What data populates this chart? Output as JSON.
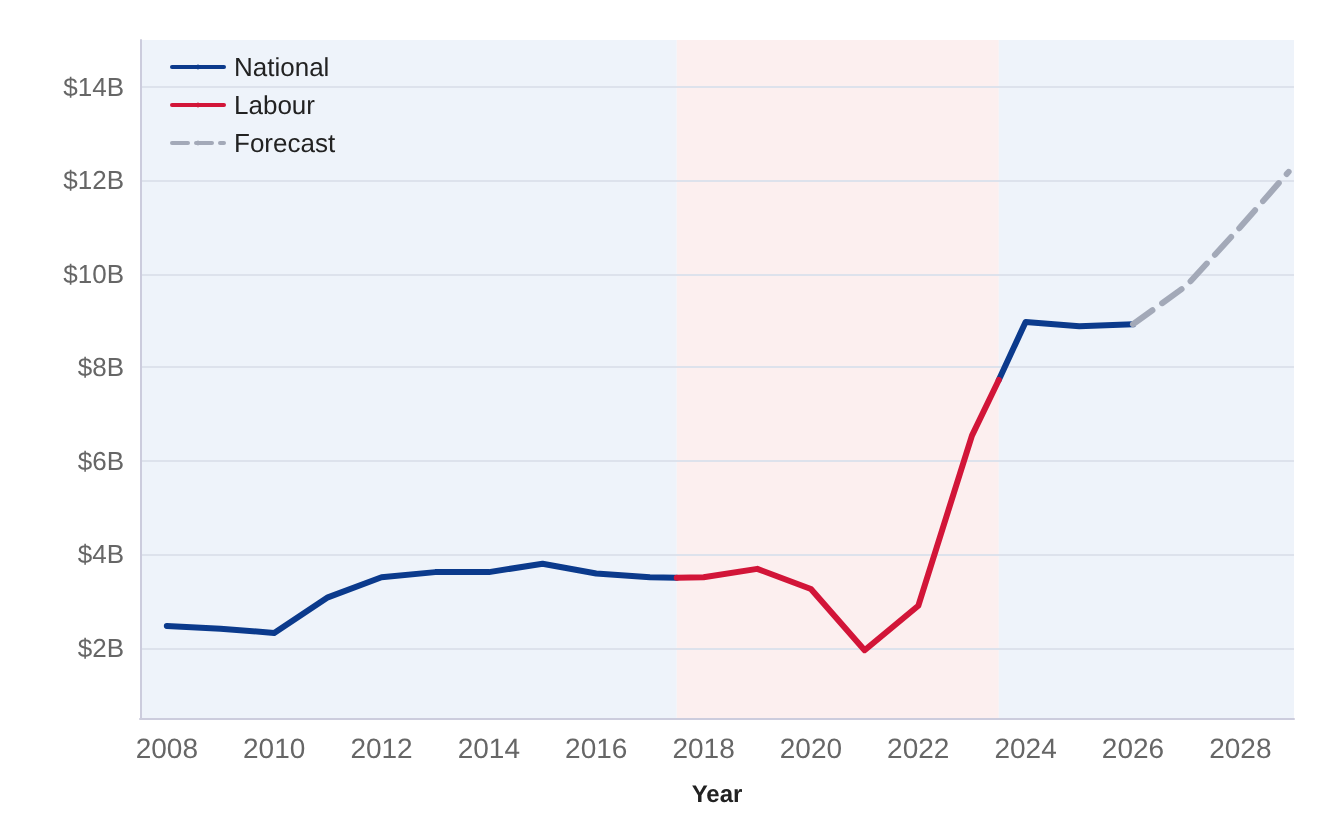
{
  "chart_data": {
    "type": "line",
    "xlabel": "Year",
    "xlim": [
      2007.5,
      2029
    ],
    "xticks": [
      2008,
      2010,
      2012,
      2014,
      2016,
      2018,
      2020,
      2022,
      2024,
      2026,
      2028
    ],
    "ylim": [
      0.5,
      15
    ],
    "yticks": [
      {
        "value": 2,
        "label": "$2B"
      },
      {
        "value": 4,
        "label": "$4B"
      },
      {
        "value": 6,
        "label": "$6B"
      },
      {
        "value": 8,
        "label": "$8B"
      },
      {
        "value": 10,
        "label": "$10B"
      },
      {
        "value": 12,
        "label": "$12B"
      },
      {
        "value": 14,
        "label": "$14B"
      }
    ],
    "grid": "y",
    "legend": "top left",
    "marker": "none",
    "series": [
      {
        "name": "National",
        "color": "#0b3a8c",
        "line_style": "solid",
        "x": [
          2008,
          2009,
          2010,
          2011,
          2012,
          2013,
          2014,
          2015,
          2016,
          2017,
          2017.5,
          2020,
          2023.5,
          2024,
          2025,
          2026
        ],
        "values": [
          2.47,
          2.41,
          2.32,
          3.08,
          3.51,
          3.62,
          3.62,
          3.8,
          3.59,
          3.51,
          3.5,
          null,
          7.73,
          8.97,
          8.88,
          8.92
        ]
      },
      {
        "name": "Labour",
        "color": "#d21538",
        "line_style": "solid",
        "x": [
          2017.5,
          2018,
          2019,
          2020,
          2021,
          2022,
          2023,
          2023.5
        ],
        "values": [
          3.5,
          3.51,
          3.69,
          3.26,
          1.95,
          2.9,
          6.54,
          7.73
        ]
      },
      {
        "name": "Forecast",
        "color": "#a3a9b8",
        "line_style": "dashed",
        "x": [
          2026,
          2027,
          2028,
          2028.9
        ],
        "values": [
          8.92,
          9.75,
          11.0,
          12.18
        ]
      }
    ],
    "bands": [
      {
        "axis": "x",
        "from": 2007.5,
        "to": 2017.5,
        "color": "#eef3fa"
      },
      {
        "axis": "x",
        "from": 2017.5,
        "to": 2023.5,
        "color": "#fcefef"
      },
      {
        "axis": "x",
        "from": 2023.5,
        "to": 2029,
        "color": "#eef3fa"
      }
    ]
  }
}
